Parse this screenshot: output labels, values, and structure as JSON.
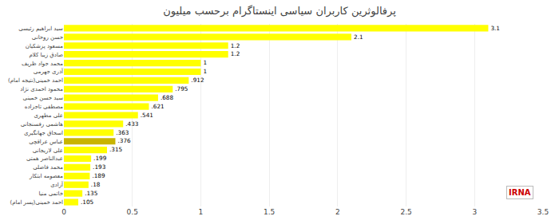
{
  "chart_data": {
    "type": "bar",
    "orientation": "horizontal",
    "title": "پرفالوثرین کاربران سیاسی اینستاگرام برحسب میلیون",
    "categories": [
      "سید ابراهیم رئیسی",
      "حسن روحانی",
      "مسعود پزشکیان",
      "صادق زیبا کلام",
      "محمد جواد ظریف",
      "آذری جهرمی",
      "احمد خمینی(نتیجه امام)",
      "محمود احمدی نژاد",
      "سید حسن خمینی",
      "مصطفی تاجزاده",
      "علی مطهری",
      "هاشمی رفسنجانی",
      "اسحاق جهانگیری",
      "عباس عراقچی",
      "علی لاریجانی",
      "عبدالناصر همتی",
      "محمد فاضلی",
      "معصومه ابتکار",
      "آزادی",
      "خاتمی منیا",
      "احمد خمینی(پسر امام)"
    ],
    "values": [
      3.1,
      2.1,
      1.2,
      1.2,
      1.0,
      1.0,
      0.912,
      0.795,
      0.688,
      0.621,
      0.541,
      0.433,
      0.363,
      0.376,
      0.315,
      0.199,
      0.193,
      0.189,
      0.18,
      0.135,
      0.105
    ],
    "value_labels": [
      "3.1",
      "2.1",
      "1.2",
      "1.2",
      "1",
      "1",
      ".912",
      ".795",
      ".688",
      ".621",
      ".541",
      ".433",
      ".363",
      ".376",
      ".315",
      ".199",
      ".193",
      ".189",
      ".18",
      ".135",
      ".105"
    ],
    "colors": [
      "#ffff00",
      "#ffff00",
      "#ffff00",
      "#ffff00",
      "#ffff00",
      "#ffff00",
      "#ffff00",
      "#ffff00",
      "#ffff00",
      "#ffff00",
      "#ffff00",
      "#ffff00",
      "#ffff00",
      "#c8b400",
      "#ffff00",
      "#ffff00",
      "#ffff00",
      "#ffff00",
      "#ffff00",
      "#ffff00",
      "#ffff00"
    ],
    "xlim": [
      0,
      3.5
    ],
    "xticks": [
      0,
      0.5,
      1,
      1.5,
      2,
      2.5,
      3,
      3.5
    ],
    "grid": true,
    "data_labels": true,
    "annotations": [
      {
        "text": "IRNA",
        "color": "#cc0000"
      }
    ]
  }
}
